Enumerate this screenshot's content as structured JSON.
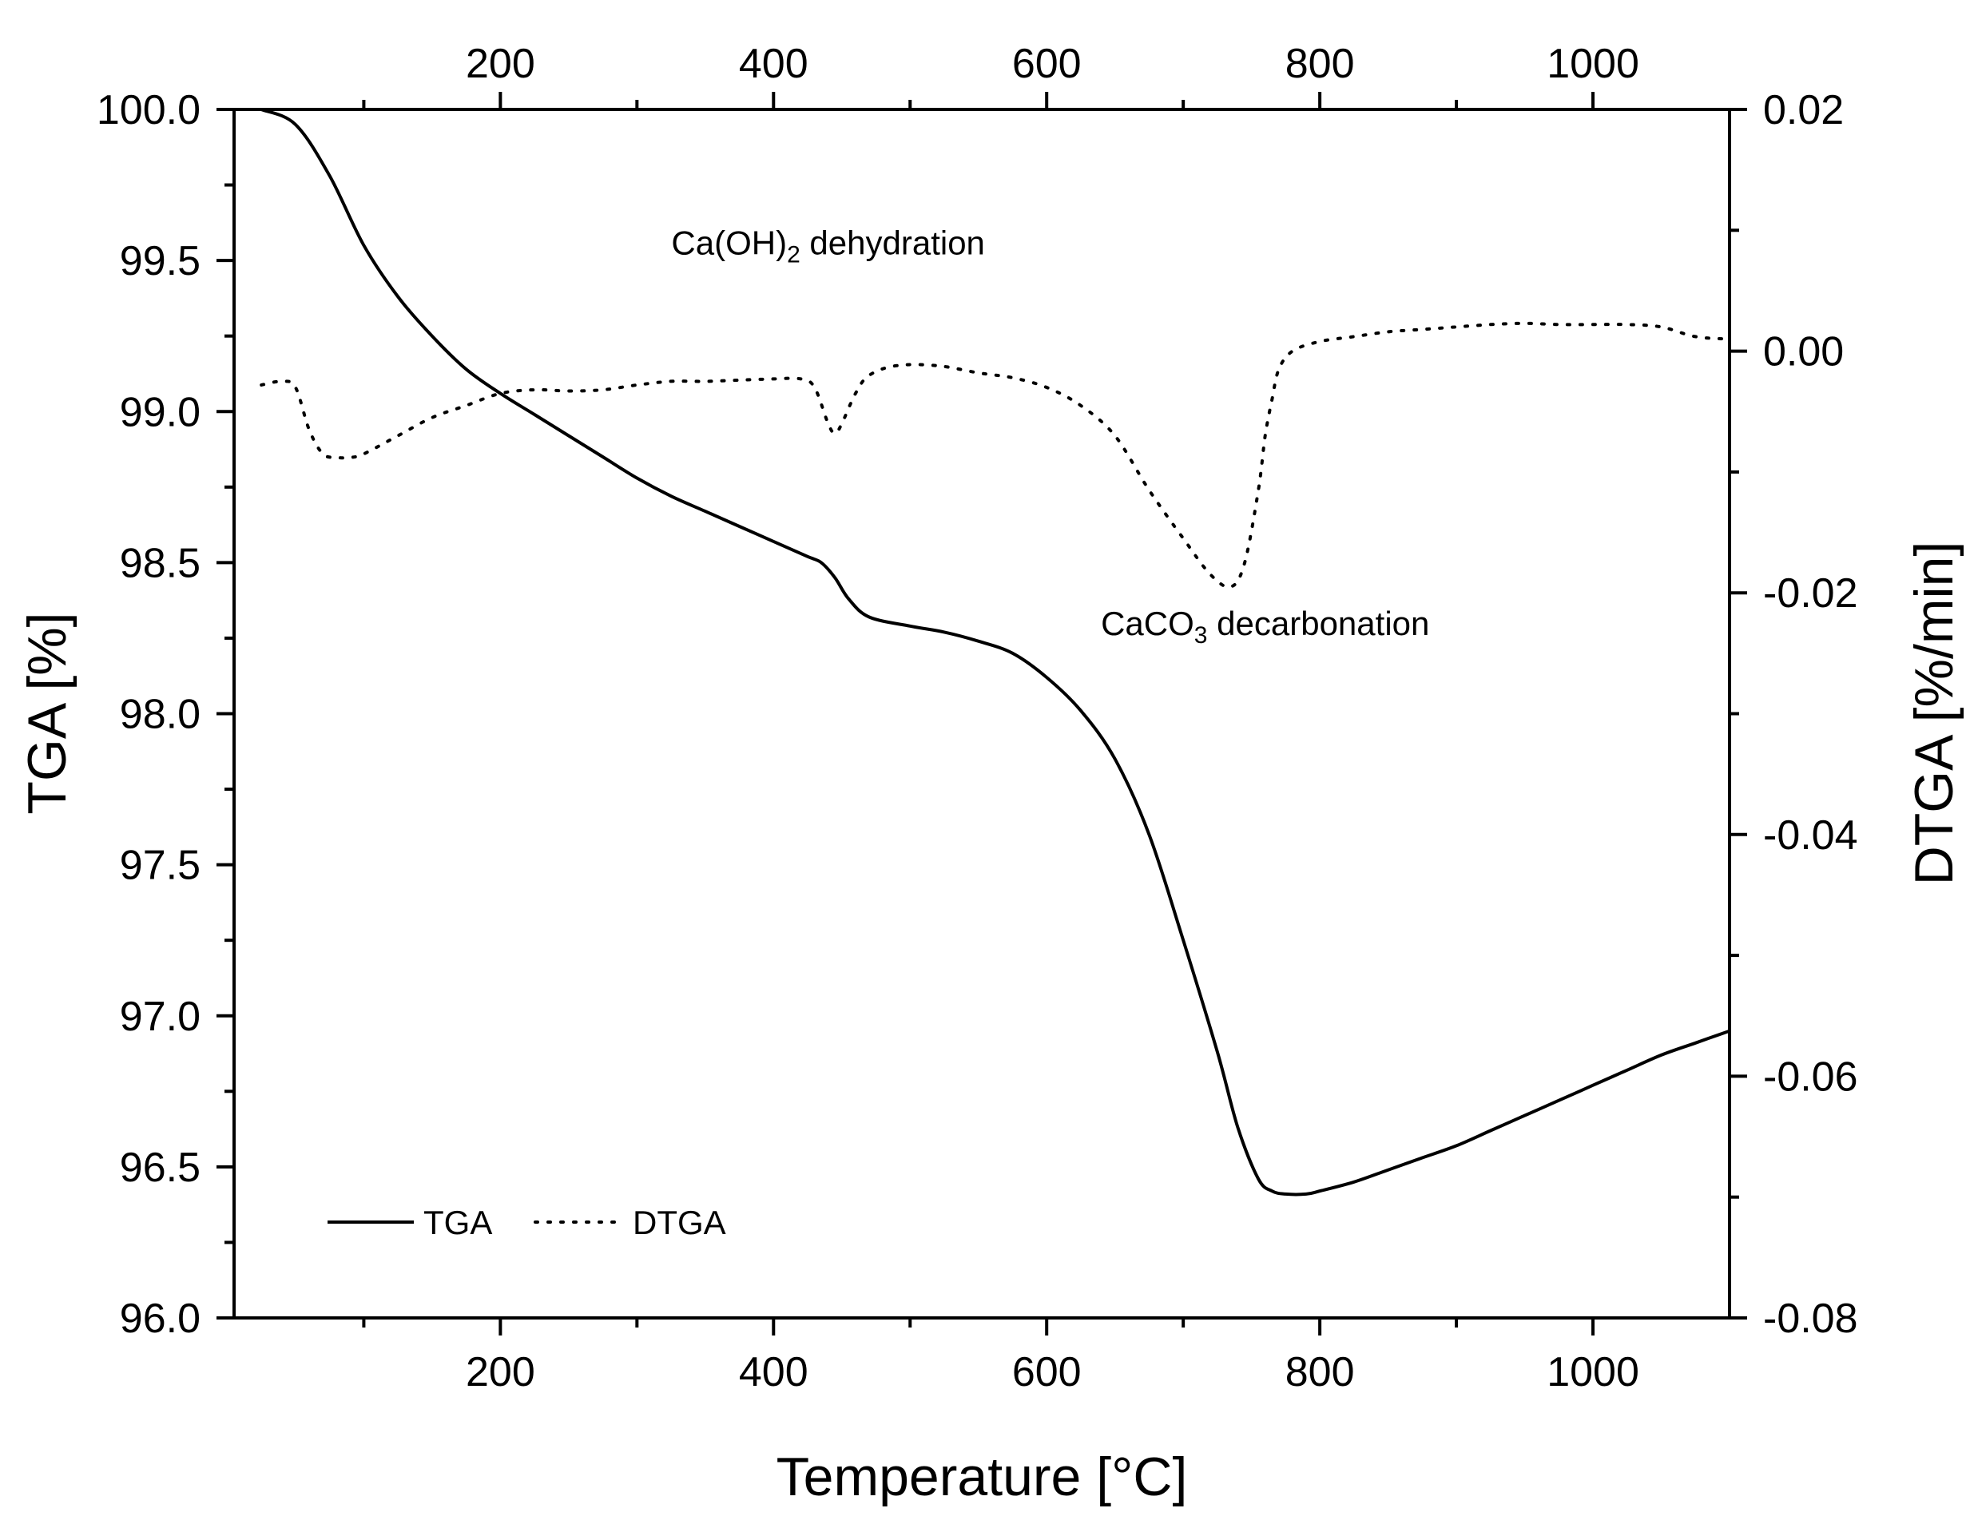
{
  "chart_data": {
    "type": "line",
    "xlabel": "Temperature [°C]",
    "ylabel_left": "TGA [%]",
    "ylabel_right": "DTGA [%/min]",
    "xlim": [
      5,
      1100
    ],
    "ylim_left": [
      96.0,
      100.0
    ],
    "ylim_right": [
      -0.08,
      0.02
    ],
    "x_ticks": [
      200,
      400,
      600,
      800,
      1000
    ],
    "x_tick_labels": [
      "200",
      "400",
      "600",
      "800",
      "1000"
    ],
    "y_left_ticks": [
      96.0,
      96.5,
      97.0,
      97.5,
      98.0,
      98.5,
      99.0,
      99.5,
      100.0
    ],
    "y_left_tick_labels": [
      "96.0",
      "96.5",
      "97.0",
      "97.5",
      "98.0",
      "98.5",
      "99.0",
      "99.5",
      "100.0"
    ],
    "y_right_ticks": [
      -0.08,
      -0.06,
      -0.04,
      -0.02,
      0.0,
      0.02
    ],
    "y_right_tick_labels": [
      "-0.08",
      "-0.06",
      "-0.04",
      "-0.02",
      "0.00",
      "0.02"
    ],
    "grid": false,
    "legend_position": "bottom-left",
    "series": [
      {
        "name": "TGA",
        "axis": "left",
        "style": "solid",
        "x": [
          25,
          50,
          75,
          100,
          125,
          150,
          175,
          200,
          225,
          250,
          275,
          300,
          325,
          350,
          375,
          400,
          425,
          435,
          445,
          455,
          470,
          500,
          525,
          550,
          575,
          600,
          625,
          650,
          675,
          700,
          725,
          740,
          755,
          765,
          775,
          790,
          800,
          825,
          850,
          875,
          900,
          925,
          950,
          975,
          1000,
          1025,
          1050,
          1075,
          1100
        ],
        "values": [
          100.0,
          99.95,
          99.78,
          99.55,
          99.38,
          99.25,
          99.14,
          99.06,
          98.99,
          98.92,
          98.85,
          98.78,
          98.72,
          98.67,
          98.62,
          98.57,
          98.52,
          98.5,
          98.45,
          98.38,
          98.32,
          98.29,
          98.27,
          98.24,
          98.2,
          98.12,
          98.01,
          97.85,
          97.6,
          97.25,
          96.88,
          96.63,
          96.46,
          96.42,
          96.41,
          96.41,
          96.42,
          96.45,
          96.49,
          96.53,
          96.57,
          96.62,
          96.67,
          96.72,
          96.77,
          96.82,
          96.87,
          96.91,
          96.95
        ]
      },
      {
        "name": "DTGA",
        "axis": "right",
        "style": "dotted",
        "x": [
          25,
          40,
          50,
          60,
          70,
          80,
          90,
          100,
          125,
          150,
          175,
          200,
          225,
          250,
          275,
          300,
          325,
          350,
          375,
          400,
          420,
          430,
          440,
          445,
          450,
          460,
          470,
          490,
          520,
          550,
          575,
          600,
          625,
          650,
          675,
          700,
          720,
          735,
          745,
          755,
          760,
          765,
          770,
          780,
          800,
          825,
          850,
          875,
          900,
          925,
          950,
          975,
          1000,
          1025,
          1050,
          1075,
          1100
        ],
        "values": [
          -0.0028,
          -0.0025,
          -0.003,
          -0.0065,
          -0.0085,
          -0.0088,
          -0.0088,
          -0.0085,
          -0.007,
          -0.0055,
          -0.0045,
          -0.0035,
          -0.0032,
          -0.0033,
          -0.0032,
          -0.0028,
          -0.0025,
          -0.0025,
          -0.0024,
          -0.0023,
          -0.0023,
          -0.003,
          -0.006,
          -0.0068,
          -0.006,
          -0.0035,
          -0.002,
          -0.0012,
          -0.0012,
          -0.0018,
          -0.0022,
          -0.003,
          -0.0045,
          -0.007,
          -0.0115,
          -0.0155,
          -0.0185,
          -0.0195,
          -0.0175,
          -0.0115,
          -0.007,
          -0.004,
          -0.0015,
          0.0,
          0.0008,
          0.0012,
          0.0016,
          0.0018,
          0.002,
          0.0022,
          0.0023,
          0.0022,
          0.0022,
          0.0022,
          0.002,
          0.0012,
          0.001
        ]
      }
    ],
    "annotations": [
      {
        "main": "Ca(OH)",
        "sub": "2",
        "rest": " dehydration",
        "x": 440,
        "y_right": 0.008
      },
      {
        "main": "CaCO",
        "sub": "3",
        "rest": " decarbonation",
        "x": 760,
        "y_right": -0.0235
      }
    ],
    "legend": [
      {
        "label": "TGA",
        "style": "solid"
      },
      {
        "label": "DTGA",
        "style": "dotted"
      }
    ]
  }
}
